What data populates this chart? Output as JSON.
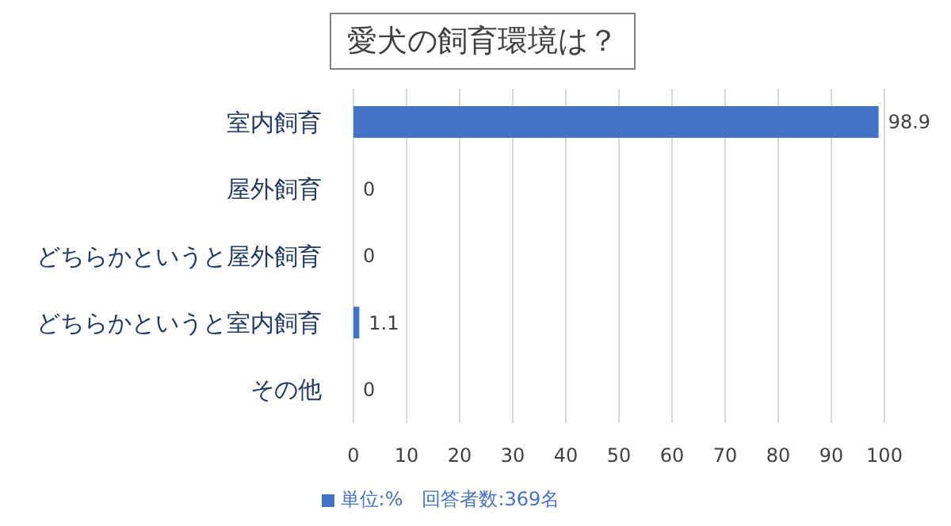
{
  "chart_data": {
    "type": "bar",
    "orientation": "horizontal",
    "title": "愛犬の飼育環境は？",
    "categories": [
      "室内飼育",
      "屋外飼育",
      "どちらかというと屋外飼育",
      "どちらかというと室内飼育",
      "その他"
    ],
    "series": [
      {
        "name": "単位:%　回答者数:369名",
        "color": "#4472c4",
        "values": [
          98.9,
          0,
          0,
          1.1,
          0
        ]
      }
    ],
    "xlim": [
      0,
      100
    ],
    "xticks": [
      0,
      10,
      20,
      30,
      40,
      50,
      60,
      70,
      80,
      90,
      100
    ],
    "grid": "x",
    "legend": "bottom",
    "data_labels": true
  }
}
